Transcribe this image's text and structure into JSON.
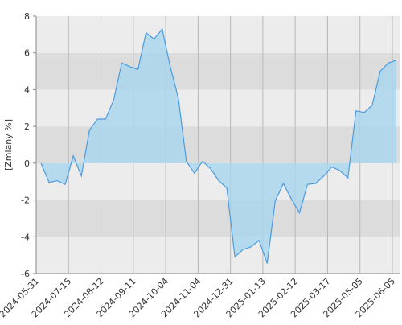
{
  "chart_data": {
    "type": "area",
    "y_label": "[Zmiany %]",
    "x_tick_labels": [
      "2024-05-31",
      "2024-07-15",
      "2024-08-12",
      "2024-09-11",
      "2024-10-04",
      "2024-11-04",
      "2024-12-31",
      "2025-01-13",
      "2025-02-12",
      "2025-03-17",
      "2025-05-05",
      "2025-06-05"
    ],
    "values": [
      0,
      -1.05,
      -0.95,
      -1.15,
      0.4,
      -0.7,
      1.8,
      2.4,
      2.4,
      3.45,
      5.45,
      5.25,
      5.1,
      7.1,
      6.75,
      7.3,
      5.25,
      3.55,
      0.1,
      -0.55,
      0.1,
      -0.3,
      -0.95,
      -1.35,
      -5.1,
      -4.7,
      -4.55,
      -4.2,
      -5.45,
      -2.05,
      -1.1,
      -1.95,
      -2.7,
      -1.15,
      -1.1,
      -0.7,
      -0.2,
      -0.4,
      -0.8,
      2.85,
      2.75,
      3.15,
      5.0,
      5.45,
      5.6
    ],
    "color": "#4a9be0",
    "fill_color": "#a9d6ee",
    "ylim": [
      -6,
      8
    ],
    "yticks": [
      -6,
      -4,
      -2,
      0,
      2,
      4,
      6,
      8
    ],
    "grid": true
  }
}
